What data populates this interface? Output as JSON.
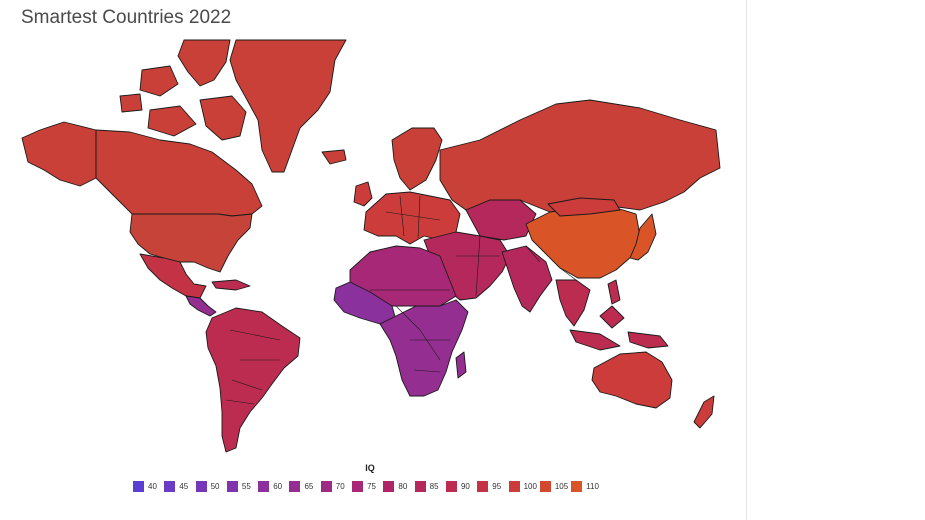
{
  "title": "Smartest Countries 2022",
  "legend": {
    "title": "IQ",
    "items": [
      {
        "label": "40",
        "color": "#5b3fd1"
      },
      {
        "label": "45",
        "color": "#6a3bc4"
      },
      {
        "label": "50",
        "color": "#7537b8"
      },
      {
        "label": "55",
        "color": "#8034ab"
      },
      {
        "label": "60",
        "color": "#8a319e"
      },
      {
        "label": "65",
        "color": "#942e91"
      },
      {
        "label": "70",
        "color": "#9d2b84"
      },
      {
        "label": "75",
        "color": "#a62876"
      },
      {
        "label": "80",
        "color": "#ae2668"
      },
      {
        "label": "85",
        "color": "#b5285c"
      },
      {
        "label": "90",
        "color": "#bc2c50"
      },
      {
        "label": "95",
        "color": "#c43345"
      },
      {
        "label": "100",
        "color": "#cb3c3a"
      },
      {
        "label": "105",
        "color": "#d2472f"
      },
      {
        "label": "110",
        "color": "#d95426"
      }
    ]
  }
}
